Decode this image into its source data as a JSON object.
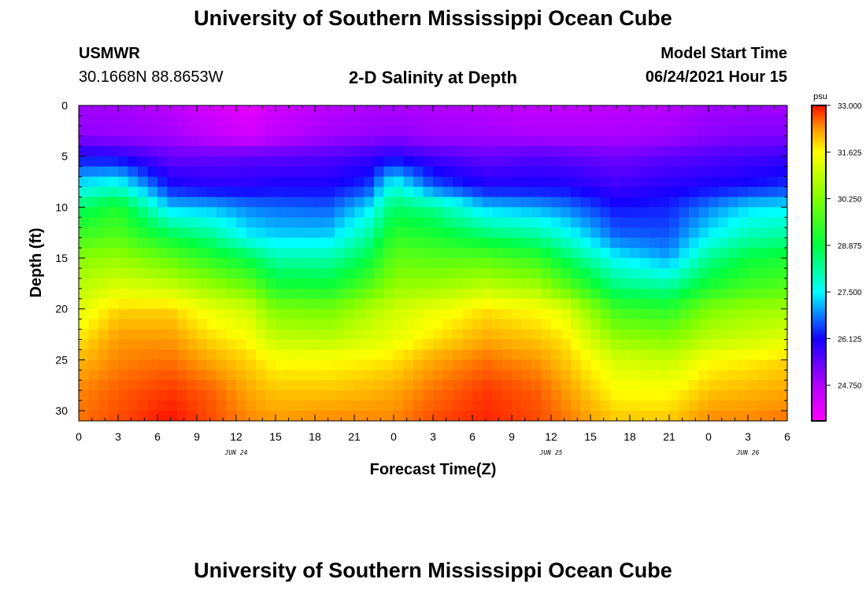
{
  "header": {
    "title": "University of Southern Mississippi Ocean Cube",
    "station": "USMWR",
    "coords": "30.1668N  88.8653W",
    "subtitle": "2-D Salinity at Depth",
    "model_start_label": "Model Start Time",
    "model_start_value": "06/24/2021 Hour 15"
  },
  "footer": {
    "title": "University of Southern Mississippi Ocean Cube"
  },
  "chart_data": {
    "type": "heatmap",
    "title": "2-D Salinity at Depth",
    "xlabel": "Forecast Time(Z)",
    "ylabel": "Depth (ft)",
    "x_tick_labels": [
      "0",
      "3",
      "6",
      "9",
      "12",
      "15",
      "18",
      "21",
      "0",
      "3",
      "6",
      "9",
      "12",
      "15",
      "18",
      "21",
      "0",
      "3",
      "6"
    ],
    "x_range_hours": [
      0,
      54
    ],
    "date_labels": [
      {
        "text": "JUN 24",
        "hour": 12
      },
      {
        "text": "JUN 25",
        "hour": 36
      },
      {
        "text": "JUN 26",
        "hour": 51
      }
    ],
    "y_ticks": [
      0,
      5,
      10,
      15,
      20,
      25,
      30
    ],
    "y_range_ft": [
      0,
      31
    ],
    "colorbar": {
      "unit": "psu",
      "range": [
        23.7,
        33.0
      ],
      "labels": [
        "33.000",
        "31.625",
        "30.250",
        "28.875",
        "27.500",
        "26.125",
        "24.750"
      ],
      "label_values": [
        33.0,
        31.625,
        30.25,
        28.875,
        27.5,
        26.125,
        24.75
      ],
      "stops": [
        {
          "v": 23.7,
          "c": "#ff00ff"
        },
        {
          "v": 24.75,
          "c": "#b400ff"
        },
        {
          "v": 26.125,
          "c": "#1400ff"
        },
        {
          "v": 27.5,
          "c": "#00ffff"
        },
        {
          "v": 28.875,
          "c": "#00ff40"
        },
        {
          "v": 30.25,
          "c": "#80ff00"
        },
        {
          "v": 31.625,
          "c": "#ffff00"
        },
        {
          "v": 32.3,
          "c": "#ff9900"
        },
        {
          "v": 33.0,
          "c": "#ff1000"
        }
      ]
    },
    "depth_columns_ft": [
      0,
      3,
      5,
      8,
      10,
      13,
      15,
      18,
      20,
      23,
      25,
      28,
      31
    ],
    "grid": [
      {
        "hour": 0,
        "values": [
          24.9,
          25.1,
          26.1,
          27.5,
          28.6,
          29.6,
          30.3,
          30.9,
          31.3,
          31.8,
          32.1,
          32.4,
          32.5
        ]
      },
      {
        "hour": 3,
        "values": [
          24.9,
          25.0,
          26.0,
          27.8,
          29.2,
          29.8,
          30.5,
          31.3,
          31.9,
          32.3,
          32.4,
          32.6,
          32.7
        ]
      },
      {
        "hour": 7,
        "values": [
          24.7,
          24.9,
          25.4,
          26.2,
          27.2,
          28.9,
          29.9,
          31.1,
          31.9,
          32.3,
          32.5,
          32.8,
          33.0
        ]
      },
      {
        "hour": 10,
        "values": [
          24.3,
          24.6,
          25.4,
          26.0,
          27.1,
          28.4,
          29.3,
          30.6,
          31.4,
          31.9,
          32.2,
          32.6,
          32.7
        ]
      },
      {
        "hour": 13,
        "values": [
          24.1,
          24.3,
          25.5,
          26.0,
          26.8,
          27.5,
          28.8,
          30.1,
          31.1,
          31.6,
          31.9,
          32.2,
          32.4
        ]
      },
      {
        "hour": 15,
        "values": [
          24.4,
          24.6,
          25.5,
          26.1,
          26.7,
          27.3,
          28.1,
          29.2,
          30.2,
          31.0,
          31.6,
          32.0,
          32.3
        ]
      },
      {
        "hour": 19,
        "values": [
          24.7,
          24.9,
          25.6,
          26.1,
          26.6,
          27.3,
          28.1,
          29.1,
          30.1,
          30.9,
          31.6,
          32.0,
          32.4
        ]
      },
      {
        "hour": 22,
        "values": [
          24.8,
          25.0,
          25.8,
          26.4,
          27.3,
          28.2,
          28.8,
          29.8,
          30.7,
          31.2,
          31.7,
          32.1,
          32.4
        ]
      },
      {
        "hour": 24,
        "values": [
          24.8,
          25.1,
          26.0,
          27.8,
          28.6,
          29.4,
          29.9,
          30.5,
          31.1,
          31.4,
          31.8,
          32.2,
          32.4
        ]
      },
      {
        "hour": 27,
        "values": [
          24.8,
          24.9,
          25.7,
          26.6,
          28.3,
          29.2,
          29.8,
          30.6,
          31.4,
          31.8,
          32.2,
          32.5,
          32.7
        ]
      },
      {
        "hour": 31,
        "values": [
          24.7,
          24.9,
          25.4,
          26.1,
          27.2,
          28.7,
          29.8,
          31.0,
          31.8,
          32.2,
          32.5,
          32.8,
          32.9
        ]
      },
      {
        "hour": 35,
        "values": [
          24.6,
          24.8,
          25.6,
          26.1,
          27.0,
          28.3,
          29.4,
          30.7,
          31.6,
          32.0,
          32.3,
          32.6,
          32.7
        ]
      },
      {
        "hour": 37,
        "values": [
          24.6,
          24.8,
          25.5,
          26.1,
          26.8,
          27.8,
          28.7,
          30.0,
          31.3,
          31.8,
          32.0,
          32.3,
          32.5
        ]
      },
      {
        "hour": 41,
        "values": [
          24.7,
          24.8,
          25.3,
          25.8,
          26.2,
          26.7,
          27.5,
          28.5,
          29.5,
          30.5,
          31.2,
          31.6,
          32.0
        ]
      },
      {
        "hour": 45,
        "values": [
          24.7,
          24.9,
          25.5,
          26.0,
          26.3,
          26.6,
          27.0,
          28.3,
          29.3,
          30.3,
          31.0,
          31.6,
          32.0
        ]
      },
      {
        "hour": 48,
        "values": [
          24.9,
          25.1,
          25.6,
          26.1,
          26.8,
          27.5,
          28.3,
          29.2,
          30.2,
          30.9,
          31.6,
          32.0,
          32.4
        ]
      },
      {
        "hour": 51,
        "values": [
          24.9,
          25.2,
          25.7,
          26.2,
          27.3,
          28.1,
          28.9,
          29.6,
          30.5,
          31.1,
          31.7,
          32.1,
          32.4
        ]
      },
      {
        "hour": 54,
        "values": [
          24.9,
          25.2,
          25.8,
          26.4,
          27.4,
          28.3,
          29.1,
          29.8,
          30.6,
          31.3,
          31.9,
          32.2,
          32.5
        ]
      }
    ]
  }
}
